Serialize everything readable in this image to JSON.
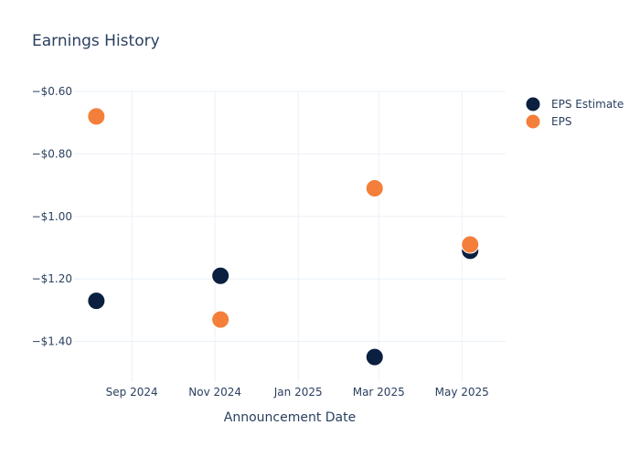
{
  "chart_data": {
    "type": "scatter",
    "title": "Earnings History",
    "xlabel": "Announcement Date",
    "ylabel": "",
    "x_ticks": [
      {
        "date": "2024-09-01",
        "label": "Sep 2024"
      },
      {
        "date": "2024-11-01",
        "label": "Nov 2024"
      },
      {
        "date": "2025-01-01",
        "label": "Jan 2025"
      },
      {
        "date": "2025-03-01",
        "label": "Mar 2025"
      },
      {
        "date": "2025-05-01",
        "label": "May 2025"
      }
    ],
    "xlim": [
      "2024-07-20",
      "2025-06-02"
    ],
    "y_ticks": [
      {
        "value": -0.6,
        "label": "−$0.60"
      },
      {
        "value": -0.8,
        "label": "−$0.80"
      },
      {
        "value": -1.0,
        "label": "−$1.00"
      },
      {
        "value": -1.2,
        "label": "−$1.20"
      },
      {
        "value": -1.4,
        "label": "−$1.40"
      }
    ],
    "ylim": [
      -1.53,
      -0.6
    ],
    "grid": true,
    "legend_position": "top-right",
    "series": [
      {
        "name": "EPS Estimate",
        "color": "#0b1f40",
        "points": [
          {
            "x": "2024-08-06",
            "y": -1.27
          },
          {
            "x": "2024-11-05",
            "y": -1.19
          },
          {
            "x": "2025-02-26",
            "y": -1.45
          },
          {
            "x": "2025-05-07",
            "y": -1.11
          }
        ]
      },
      {
        "name": "EPS",
        "color": "#f47f3a",
        "points": [
          {
            "x": "2024-08-06",
            "y": -0.68
          },
          {
            "x": "2024-11-05",
            "y": -1.33
          },
          {
            "x": "2025-02-26",
            "y": -0.91
          },
          {
            "x": "2025-05-07",
            "y": -1.09
          }
        ]
      }
    ]
  }
}
